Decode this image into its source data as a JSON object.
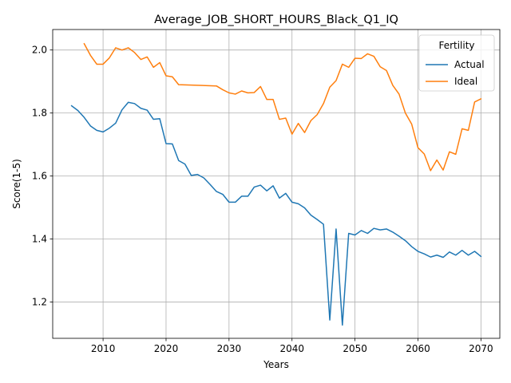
{
  "chart_data": {
    "type": "line",
    "title": "Average_JOB_SHORT_HOURS_Black_Q1_IQ",
    "xlabel": "Years",
    "ylabel": "Score(1-5)",
    "xlim": [
      2002,
      2073
    ],
    "ylim": [
      1.085,
      2.065
    ],
    "xticks": [
      2010,
      2020,
      2030,
      2040,
      2050,
      2060,
      2070
    ],
    "yticks": [
      1.2,
      1.4,
      1.6,
      1.8,
      2.0
    ],
    "grid": true,
    "legend": {
      "title": "Fertility",
      "placement": "top-right"
    },
    "series": [
      {
        "name": "Actual",
        "color": "#1f77b4",
        "x": [
          2005,
          2006,
          2007,
          2008,
          2009,
          2010,
          2011,
          2012,
          2013,
          2014,
          2015,
          2016,
          2017,
          2018,
          2019,
          2020,
          2021,
          2022,
          2023,
          2024,
          2025,
          2026,
          2027,
          2028,
          2029,
          2030,
          2031,
          2032,
          2033,
          2034,
          2035,
          2036,
          2037,
          2038,
          2039,
          2040,
          2041,
          2042,
          2043,
          2044,
          2045,
          2046,
          2047,
          2048,
          2049,
          2050,
          2051,
          2052,
          2053,
          2054,
          2055,
          2056,
          2057,
          2058,
          2059,
          2060,
          2061,
          2062,
          2063,
          2064,
          2065,
          2066,
          2067,
          2068,
          2069,
          2070
        ],
        "y": [
          1.823,
          1.808,
          1.786,
          1.759,
          1.745,
          1.74,
          1.752,
          1.768,
          1.81,
          1.834,
          1.83,
          1.815,
          1.809,
          1.78,
          1.782,
          1.703,
          1.702,
          1.649,
          1.638,
          1.602,
          1.605,
          1.594,
          1.573,
          1.551,
          1.542,
          1.517,
          1.517,
          1.536,
          1.536,
          1.565,
          1.571,
          1.553,
          1.569,
          1.53,
          1.545,
          1.517,
          1.512,
          1.499,
          1.476,
          1.462,
          1.447,
          1.143,
          1.432,
          1.127,
          1.418,
          1.413,
          1.427,
          1.418,
          1.434,
          1.429,
          1.432,
          1.422,
          1.409,
          1.395,
          1.376,
          1.361,
          1.353,
          1.343,
          1.349,
          1.342,
          1.359,
          1.349,
          1.364,
          1.349,
          1.361,
          1.345
        ]
      },
      {
        "name": "Ideal",
        "color": "#ff7f0e",
        "x": [
          2007,
          2008,
          2009,
          2010,
          2011,
          2012,
          2013,
          2014,
          2015,
          2016,
          2017,
          2018,
          2019,
          2020,
          2021,
          2022,
          2028,
          2029,
          2030,
          2031,
          2032,
          2033,
          2034,
          2035,
          2036,
          2037,
          2038,
          2039,
          2040,
          2041,
          2042,
          2043,
          2044,
          2045,
          2046,
          2047,
          2048,
          2049,
          2050,
          2051,
          2052,
          2053,
          2054,
          2055,
          2056,
          2057,
          2058,
          2059,
          2060,
          2061,
          2062,
          2063,
          2064,
          2065,
          2066,
          2067,
          2068,
          2069,
          2070
        ],
        "y": [
          2.02,
          1.983,
          1.955,
          1.955,
          1.975,
          2.007,
          2.0,
          2.007,
          1.992,
          1.97,
          1.978,
          1.945,
          1.96,
          1.918,
          1.915,
          1.89,
          1.886,
          1.874,
          1.864,
          1.86,
          1.87,
          1.864,
          1.865,
          1.884,
          1.843,
          1.843,
          1.78,
          1.784,
          1.733,
          1.767,
          1.738,
          1.776,
          1.795,
          1.83,
          1.882,
          1.903,
          1.955,
          1.945,
          1.974,
          1.973,
          1.988,
          1.98,
          1.947,
          1.935,
          1.888,
          1.86,
          1.8,
          1.765,
          1.69,
          1.67,
          1.617,
          1.651,
          1.619,
          1.677,
          1.669,
          1.75,
          1.745,
          1.835,
          1.845
        ]
      }
    ]
  }
}
